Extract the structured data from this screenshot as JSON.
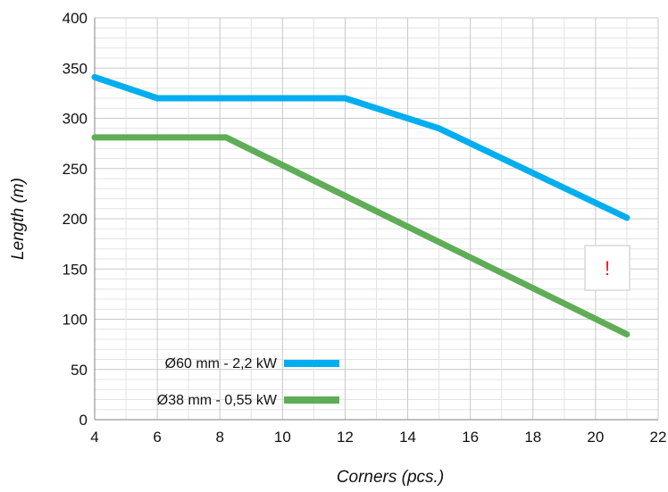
{
  "chart_data": {
    "type": "line",
    "xlabel": "Corners (pcs.)",
    "ylabel": "Length (m)",
    "xlim": [
      4,
      22
    ],
    "ylim": [
      0,
      400
    ],
    "x_ticks": [
      4,
      6,
      8,
      10,
      12,
      14,
      16,
      18,
      20,
      22
    ],
    "y_ticks": [
      0,
      50,
      100,
      150,
      200,
      250,
      300,
      350,
      400
    ],
    "grid": "major and minor",
    "legend_position": "bottom-left",
    "series": [
      {
        "name": "Ø60 mm - 2,2 kW",
        "color": "#00aeef",
        "points": [
          [
            4,
            341
          ],
          [
            6,
            320
          ],
          [
            12,
            320
          ],
          [
            15,
            290
          ],
          [
            21,
            201
          ]
        ]
      },
      {
        "name": "Ø38 mm - 0,55 kW",
        "color": "#5fad56",
        "points": [
          [
            4,
            281
          ],
          [
            8.2,
            281
          ],
          [
            21,
            85
          ]
        ]
      }
    ],
    "annotation": {
      "text": "!",
      "color": "#e02020"
    }
  }
}
